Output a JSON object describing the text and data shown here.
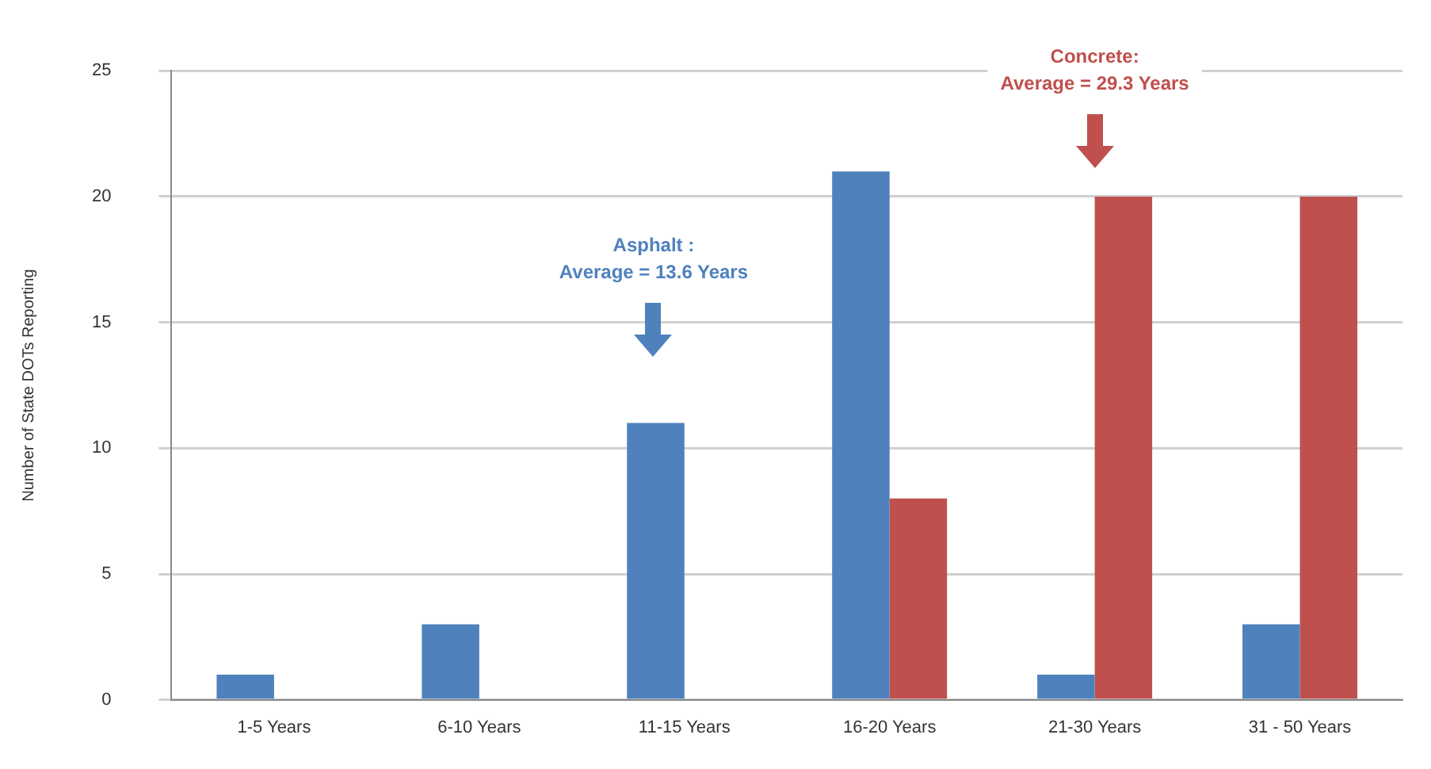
{
  "chart_data": {
    "type": "bar",
    "ylabel": "Number of State DOTs Reporting",
    "categories": [
      "1-5 Years",
      "6-10 Years",
      "11-15 Years",
      "16-20 Years",
      "21-30 Years",
      "31 - 50 Years"
    ],
    "series": [
      {
        "color": "#4f81bd",
        "values": [
          1,
          3,
          11,
          21,
          1,
          3
        ]
      },
      {
        "color": "#c0504d",
        "values": [
          null,
          null,
          null,
          8,
          20,
          20
        ]
      }
    ],
    "ylim": [
      0,
      25
    ],
    "yticks": [
      0,
      5,
      10,
      15,
      20,
      25
    ],
    "grid": "y",
    "legend": false,
    "annotations": [
      "Asphalt :\nAverage = 13.6 Years",
      "Concrete:\nAverage = 29.3 Years"
    ]
  }
}
